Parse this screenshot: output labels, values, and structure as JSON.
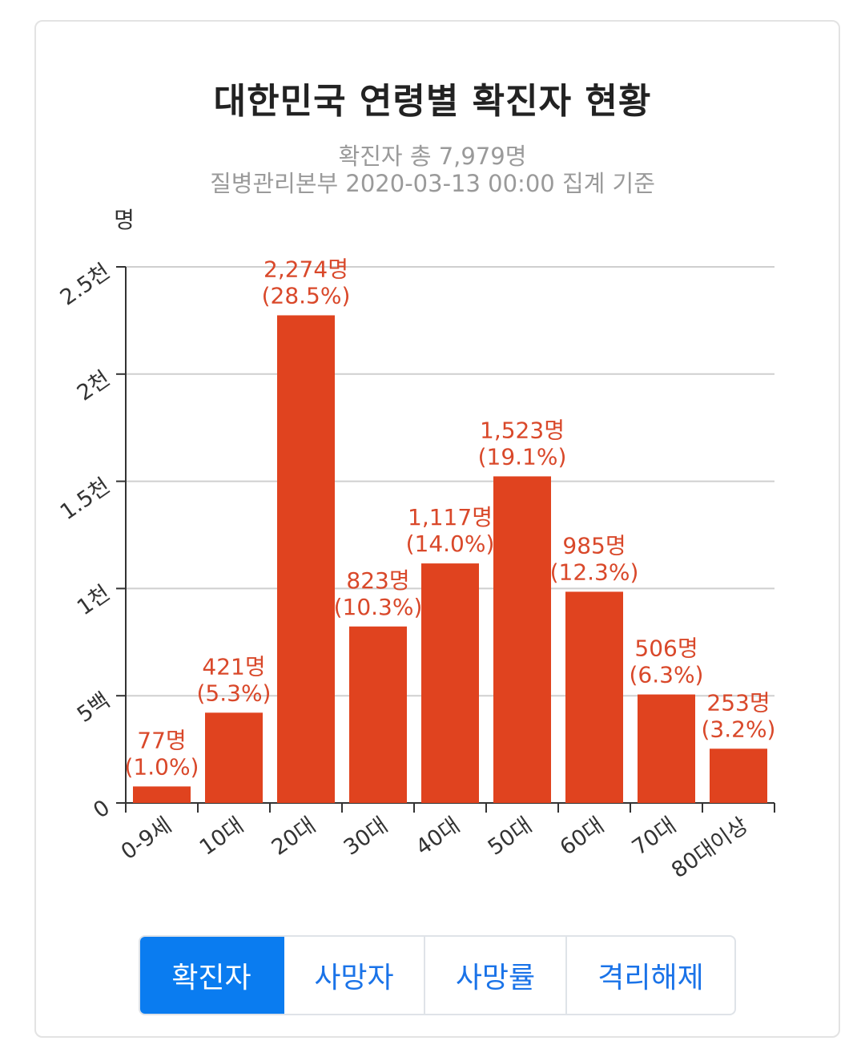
{
  "title": "대한민국 연령별 확진자 현황",
  "subtitle_line1": "확진자 총 7,979명",
  "subtitle_line2": "질병관리본부 2020-03-13 00:00 집계 기준",
  "colors": {
    "bar": "#e0431f",
    "label": "#d9482a",
    "active_tab": "#0a7cf0",
    "tab_text": "#1a73e8"
  },
  "chart_data": {
    "type": "bar",
    "title": "대한민국 연령별 확진자 현황",
    "ylabel": "명",
    "xlabel": "",
    "ylim": [
      0,
      2500
    ],
    "grid": true,
    "categories": [
      "0-9세",
      "10대",
      "20대",
      "30대",
      "40대",
      "50대",
      "60대",
      "70대",
      "80대이상"
    ],
    "values": [
      77,
      421,
      2274,
      823,
      1117,
      1523,
      985,
      506,
      253
    ],
    "value_labels": [
      "77명",
      "421명",
      "2,274명",
      "823명",
      "1,117명",
      "1,523명",
      "985명",
      "506명",
      "253명"
    ],
    "percent_labels": [
      "(1.0%)",
      "(5.3%)",
      "(28.5%)",
      "(10.3%)",
      "(14.0%)",
      "(19.1%)",
      "(12.3%)",
      "(6.3%)",
      "(3.2%)"
    ],
    "yticks": [
      0,
      500,
      1000,
      1500,
      2000,
      2500
    ],
    "ytick_labels": [
      "0",
      "5백",
      "1천",
      "1.5천",
      "2천",
      "2.5천"
    ]
  },
  "tabs": [
    {
      "label": "확진자",
      "active": true
    },
    {
      "label": "사망자",
      "active": false
    },
    {
      "label": "사망률",
      "active": false
    },
    {
      "label": "격리해제",
      "active": false
    }
  ]
}
